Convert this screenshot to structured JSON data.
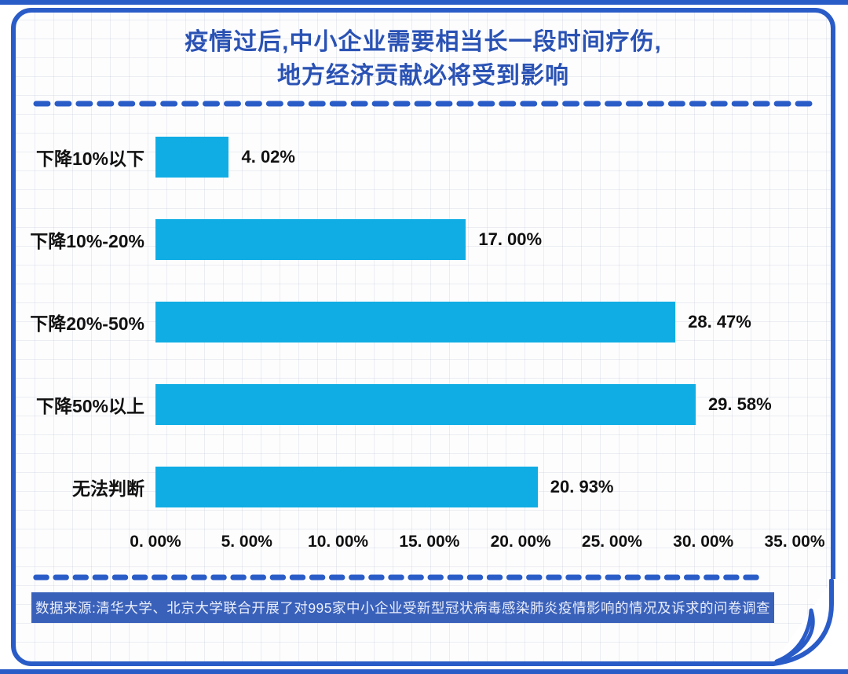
{
  "page": {
    "title_line1": "疫情过后,中小企业需要相当长一段时间疗伤,",
    "title_line2": "地方经济贡献必将受到影响"
  },
  "chart_data": {
    "type": "bar",
    "orientation": "horizontal",
    "title": "疫情过后,中小企业需要相当长一段时间疗伤,地方经济贡献必将受到影响",
    "categories": [
      "下降10%以下",
      "下降10%-20%",
      "下降20%-50%",
      "下降50%以上",
      "无法判断"
    ],
    "values": [
      4.02,
      17.0,
      28.47,
      29.58,
      20.93
    ],
    "value_labels": [
      "4. 02%",
      "17. 00%",
      "28. 47%",
      "29. 58%",
      "20. 93%"
    ],
    "x_ticks": [
      "0. 00%",
      "5. 00%",
      "10. 00%",
      "15. 00%",
      "20. 00%",
      "25. 00%",
      "30. 00%",
      "35. 00%"
    ],
    "xlabel": "",
    "ylabel": "",
    "xlim": [
      0,
      35
    ],
    "grid": true,
    "legend": false
  },
  "footer": {
    "source_text": "数据来源:清华大学、北京大学联合开展了对995家中小企业受新型冠状病毒感染肺炎疫情影响的情况及诉求的问卷调查"
  },
  "colors": {
    "frame_blue": "#2a5cc8",
    "title_blue": "#2a52b4",
    "bar_cyan": "#10ade4",
    "footer_band_blue": "#3a61ba",
    "label_black": "#111111"
  }
}
